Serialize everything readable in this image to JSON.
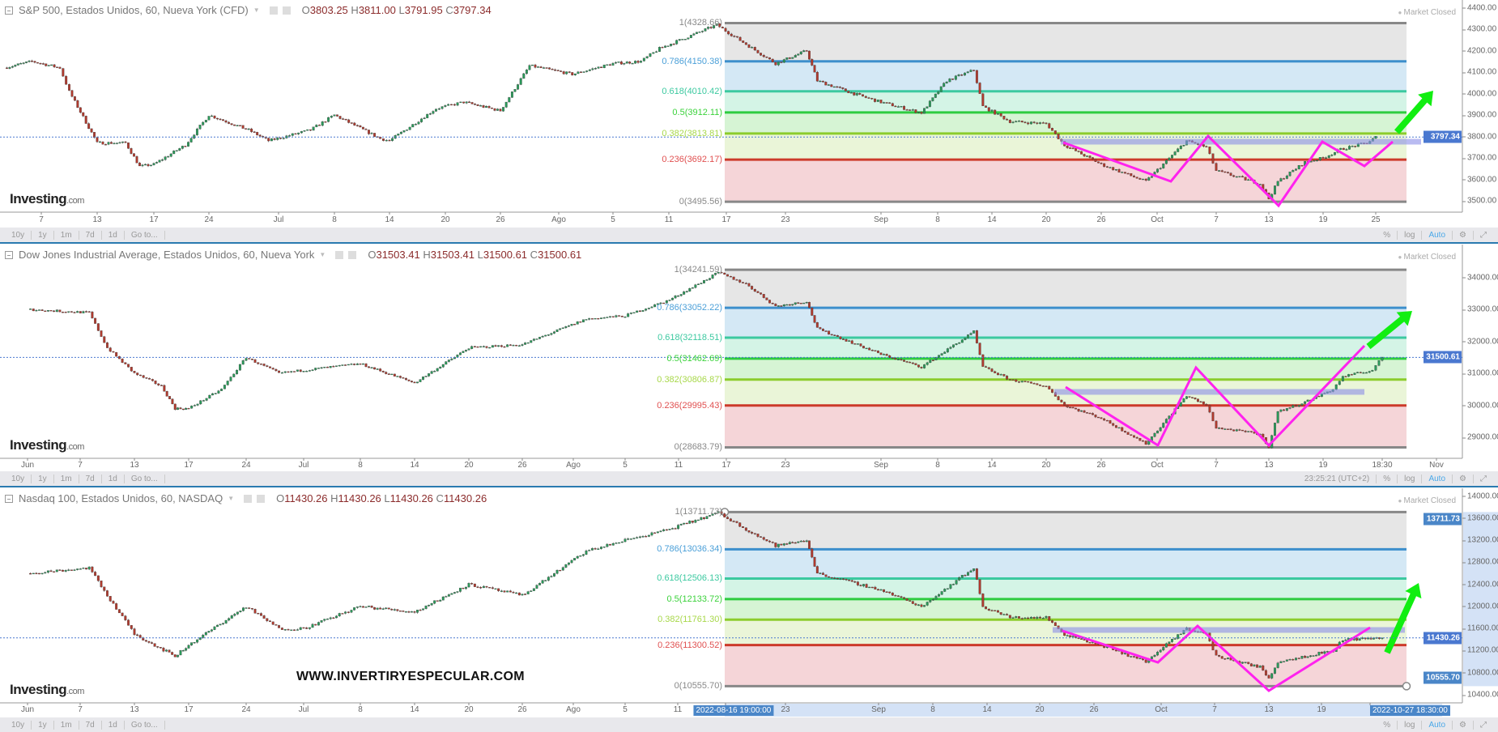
{
  "watermark": "WWW.INVERTIRYESPECULAR.COM",
  "logo": {
    "brand": "Investing",
    "suffix": ".com"
  },
  "toolbar": {
    "ranges": [
      "10y",
      "1y",
      "1m",
      "7d",
      "1d",
      "Go to..."
    ],
    "clock": "23:25:21 (UTC+2)",
    "percent": "%",
    "log": "log",
    "auto": "Auto",
    "settings_icon": "gear-icon",
    "fullscreen_icon": "fullscreen-icon"
  },
  "colors": {
    "fib_1": "#888888",
    "fib_0786": "#3d8fcc",
    "fib_0618": "#3cc9a0",
    "fib_05": "#2ecc40",
    "fib_0382": "#8ccc2c",
    "fib_0236": "#cc3a2a",
    "zigzag": "#ff22ee",
    "arrow": "#11ee11",
    "up_candle": "#2a9a5a",
    "down_candle": "#b03a2e",
    "price_label": "#4a78d0"
  },
  "panels": [
    {
      "title": "S&P 500, Estados Unidos, 60, Nueva York (CFD)",
      "ohlc": {
        "o": "O",
        "o_val": "3803.25",
        "h": "H",
        "h_val": "3811.00",
        "l": "L",
        "l_val": "3791.95",
        "c": "C",
        "c_val": "3797.34"
      },
      "market_status": "Market Closed",
      "last_price": "3797.34",
      "y_ticks": [
        "4400.00",
        "4300.00",
        "4200.00",
        "4100.00",
        "4000.00",
        "3900.00",
        "3800.00",
        "3700.00",
        "3600.00",
        "3500.00"
      ],
      "x_ticks": [
        "7",
        "13",
        "17",
        "24",
        "Jul",
        "8",
        "14",
        "20",
        "26",
        "Ago",
        "5",
        "11",
        "17",
        "23",
        "Sep",
        "8",
        "14",
        "20",
        "26",
        "Oct",
        "7",
        "13",
        "19",
        "25"
      ],
      "fib_levels": [
        {
          "ratio": 1,
          "value": 4328.66,
          "label": "1(4328.66)"
        },
        {
          "ratio": 0.786,
          "value": 4150.38,
          "label": "0.786(4150.38)"
        },
        {
          "ratio": 0.618,
          "value": 4010.42,
          "label": "0.618(4010.42)"
        },
        {
          "ratio": 0.5,
          "value": 3912.11,
          "label": "0.5(3912.11)"
        },
        {
          "ratio": 0.382,
          "value": 3813.81,
          "label": "0.382(3813.81)"
        },
        {
          "ratio": 0.236,
          "value": 3692.17,
          "label": "0.236(3692.17)"
        },
        {
          "ratio": 0,
          "value": 3495.56,
          "label": "0(3495.56)"
        }
      ],
      "price_path": [
        [
          "06-03",
          4120
        ],
        [
          "06-06",
          4150
        ],
        [
          "06-09",
          4120
        ],
        [
          "06-10",
          4010
        ],
        [
          "06-13",
          3770
        ],
        [
          "06-15",
          3770
        ],
        [
          "06-16",
          3660
        ],
        [
          "06-17",
          3670
        ],
        [
          "06-21",
          3760
        ],
        [
          "06-24",
          3900
        ],
        [
          "06-28",
          3830
        ],
        [
          "06-30",
          3780
        ],
        [
          "07-05",
          3830
        ],
        [
          "07-08",
          3900
        ],
        [
          "07-13",
          3790
        ],
        [
          "07-14",
          3780
        ],
        [
          "07-19",
          3930
        ],
        [
          "07-22",
          3960
        ],
        [
          "07-26",
          3920
        ],
        [
          "07-29",
          4130
        ],
        [
          "08-02",
          4090
        ],
        [
          "08-05",
          4140
        ],
        [
          "08-08",
          4150
        ],
        [
          "08-10",
          4210
        ],
        [
          "08-16",
          4320
        ],
        [
          "08-19",
          4230
        ],
        [
          "08-22",
          4140
        ],
        [
          "08-25",
          4200
        ],
        [
          "08-26",
          4060
        ],
        [
          "08-30",
          3990
        ],
        [
          "09-01",
          3960
        ],
        [
          "09-06",
          3910
        ],
        [
          "09-09",
          4060
        ],
        [
          "09-12",
          4110
        ],
        [
          "09-13",
          3940
        ],
        [
          "09-16",
          3870
        ],
        [
          "09-20",
          3860
        ],
        [
          "09-22",
          3760
        ],
        [
          "09-26",
          3670
        ],
        [
          "09-30",
          3590
        ],
        [
          "10-04",
          3780
        ],
        [
          "10-06",
          3750
        ],
        [
          "10-07",
          3640
        ],
        [
          "10-12",
          3580
        ],
        [
          "10-13",
          3510
        ],
        [
          "10-14",
          3590
        ],
        [
          "10-17",
          3680
        ],
        [
          "10-19",
          3700
        ],
        [
          "10-21",
          3740
        ],
        [
          "10-24",
          3770
        ],
        [
          "10-25",
          3797
        ]
      ]
    },
    {
      "title": "Dow Jones Industrial Average, Estados Unidos, 60, Nueva York",
      "ohlc": {
        "o": "O",
        "o_val": "31503.41",
        "h": "H",
        "h_val": "31503.41",
        "l": "L",
        "l_val": "31500.61",
        "c": "C",
        "c_val": "31500.61"
      },
      "market_status": "Market Closed",
      "last_price": "31500.61",
      "y_ticks": [
        "34000.00",
        "33000.00",
        "32000.00",
        "31000.00",
        "30000.00",
        "29000.00"
      ],
      "x_ticks": [
        "Jun",
        "7",
        "13",
        "17",
        "24",
        "Jul",
        "8",
        "14",
        "20",
        "26",
        "Ago",
        "5",
        "11",
        "17",
        "23",
        "Sep",
        "8",
        "14",
        "20",
        "26",
        "Oct",
        "7",
        "13",
        "19",
        "18:30",
        "Nov"
      ],
      "fib_levels": [
        {
          "ratio": 1,
          "value": 34241.59,
          "label": "1(34241.59)"
        },
        {
          "ratio": 0.786,
          "value": 33052.22,
          "label": "0.786(33052.22)"
        },
        {
          "ratio": 0.618,
          "value": 32118.51,
          "label": "0.618(32118.51)"
        },
        {
          "ratio": 0.5,
          "value": 31462.69,
          "label": "0.5(31462.69)"
        },
        {
          "ratio": 0.382,
          "value": 30806.87,
          "label": "0.382(30806.87)"
        },
        {
          "ratio": 0.236,
          "value": 29995.43,
          "label": "0.236(29995.43)"
        },
        {
          "ratio": 0,
          "value": 28683.79,
          "label": "0(28683.79)"
        }
      ],
      "price_path": [
        [
          "06-01",
          33000
        ],
        [
          "06-08",
          32900
        ],
        [
          "06-10",
          31800
        ],
        [
          "06-13",
          31000
        ],
        [
          "06-15",
          30600
        ],
        [
          "06-16",
          29900
        ],
        [
          "06-17",
          29900
        ],
        [
          "06-21",
          30500
        ],
        [
          "06-24",
          31500
        ],
        [
          "06-28",
          31000
        ],
        [
          "07-01",
          31100
        ],
        [
          "07-08",
          31300
        ],
        [
          "07-14",
          30700
        ],
        [
          "07-20",
          31800
        ],
        [
          "07-26",
          31900
        ],
        [
          "08-02",
          32700
        ],
        [
          "08-05",
          32800
        ],
        [
          "08-10",
          33300
        ],
        [
          "08-16",
          34150
        ],
        [
          "08-19",
          33800
        ],
        [
          "08-22",
          33100
        ],
        [
          "08-25",
          33250
        ],
        [
          "08-26",
          32400
        ],
        [
          "09-01",
          31600
        ],
        [
          "09-06",
          31200
        ],
        [
          "09-12",
          32300
        ],
        [
          "09-13",
          31200
        ],
        [
          "09-16",
          30800
        ],
        [
          "09-20",
          30600
        ],
        [
          "09-22",
          30000
        ],
        [
          "09-26",
          29600
        ],
        [
          "09-30",
          28800
        ],
        [
          "10-04",
          30300
        ],
        [
          "10-06",
          30000
        ],
        [
          "10-07",
          29300
        ],
        [
          "10-12",
          29100
        ],
        [
          "10-13",
          28700
        ],
        [
          "10-14",
          29800
        ],
        [
          "10-17",
          30100
        ],
        [
          "10-20",
          30500
        ],
        [
          "10-21",
          30900
        ],
        [
          "10-24",
          31100
        ],
        [
          "10-25",
          31500
        ]
      ]
    },
    {
      "title": "Nasdaq 100, Estados Unidos, 60, NASDAQ",
      "ohlc": {
        "o": "O",
        "o_val": "11430.26",
        "h": "H",
        "h_val": "11430.26",
        "l": "L",
        "l_val": "11430.26",
        "c": "C",
        "c_val": "11430.26"
      },
      "market_status": "Market Closed",
      "last_price": "11430.26",
      "range_high_label": "13711.73",
      "range_low_label": "10555.70",
      "y_ticks": [
        "14000.00",
        "13600.00",
        "13200.00",
        "12800.00",
        "12400.00",
        "12000.00",
        "11600.00",
        "11200.00",
        "10800.00",
        "10400.00"
      ],
      "x_ticks": [
        "Jun",
        "7",
        "13",
        "17",
        "24",
        "Jul",
        "8",
        "14",
        "20",
        "26",
        "Ago",
        "5",
        "11",
        "2022-08-16 19:00:00",
        "23",
        "Sep",
        "8",
        "14",
        "20",
        "26",
        "Oct",
        "7",
        "13",
        "19",
        "2022-10-27 18:30:00"
      ],
      "fib_levels": [
        {
          "ratio": 1,
          "value": 13711.73,
          "label": "1(13711.73)"
        },
        {
          "ratio": 0.786,
          "value": 13036.34,
          "label": "0.786(13036.34)"
        },
        {
          "ratio": 0.618,
          "value": 12506.13,
          "label": "0.618(12506.13)"
        },
        {
          "ratio": 0.5,
          "value": 12133.72,
          "label": "0.5(12133.72)"
        },
        {
          "ratio": 0.382,
          "value": 11761.3,
          "label": "0.382(11761.30)"
        },
        {
          "ratio": 0.236,
          "value": 11300.52,
          "label": "0.236(11300.52)"
        },
        {
          "ratio": 0,
          "value": 10555.7,
          "label": "0(10555.70)"
        }
      ],
      "price_path": [
        [
          "06-01",
          12600
        ],
        [
          "06-08",
          12700
        ],
        [
          "06-10",
          12200
        ],
        [
          "06-13",
          11500
        ],
        [
          "06-16",
          11100
        ],
        [
          "06-17",
          11300
        ],
        [
          "06-24",
          12000
        ],
        [
          "06-28",
          11600
        ],
        [
          "07-01",
          11600
        ],
        [
          "07-08",
          12000
        ],
        [
          "07-14",
          11900
        ],
        [
          "07-20",
          12400
        ],
        [
          "07-26",
          12200
        ],
        [
          "08-02",
          13000
        ],
        [
          "08-05",
          13200
        ],
        [
          "08-10",
          13400
        ],
        [
          "08-16",
          13700
        ],
        [
          "08-19",
          13400
        ],
        [
          "08-22",
          13100
        ],
        [
          "08-25",
          13200
        ],
        [
          "08-26",
          12600
        ],
        [
          "09-01",
          12300
        ],
        [
          "09-06",
          12000
        ],
        [
          "09-12",
          12700
        ],
        [
          "09-13",
          12000
        ],
        [
          "09-16",
          11800
        ],
        [
          "09-20",
          11800
        ],
        [
          "09-22",
          11500
        ],
        [
          "09-26",
          11300
        ],
        [
          "09-30",
          11000
        ],
        [
          "10-04",
          11600
        ],
        [
          "10-06",
          11500
        ],
        [
          "10-07",
          11100
        ],
        [
          "10-12",
          10900
        ],
        [
          "10-13",
          10700
        ],
        [
          "10-14",
          11000
        ],
        [
          "10-17",
          11100
        ],
        [
          "10-20",
          11200
        ],
        [
          "10-21",
          11400
        ],
        [
          "10-25",
          11430
        ]
      ]
    }
  ]
}
